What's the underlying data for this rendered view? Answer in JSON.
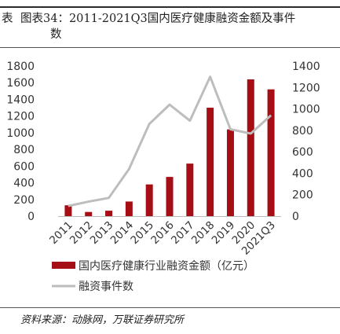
{
  "header": {
    "lead": "表",
    "title_line1": "图表34：2011-2021Q3国内医疗健康融资金额及事件",
    "title_line2": "数"
  },
  "source": "资料来源：动脉网，万联证券研究所",
  "colors": {
    "bar": "#a40e14",
    "line": "#bdbdbd"
  },
  "chart_data": {
    "type": "bar",
    "categories": [
      "2011",
      "2012",
      "2013",
      "2014",
      "2015",
      "2016",
      "2017",
      "2018",
      "2019",
      "2020",
      "2021Q3"
    ],
    "series": [
      {
        "name": "国内医疗健康行业融资金额（亿元）",
        "type": "bar",
        "axis": "left",
        "values": [
          130,
          50,
          65,
          175,
          380,
          470,
          630,
          1300,
          1040,
          1640,
          1520
        ]
      },
      {
        "name": "融资事件数",
        "type": "line",
        "axis": "right",
        "values": [
          95,
          135,
          170,
          440,
          860,
          1040,
          890,
          1300,
          810,
          770,
          940
        ]
      }
    ],
    "ylim_left": [
      0,
      1800
    ],
    "yticks_left": [
      "0",
      "200",
      "400",
      "600",
      "800",
      "1000",
      "1200",
      "1400",
      "1600",
      "1800"
    ],
    "ylim_right": [
      0,
      1400
    ],
    "yticks_right": [
      "0",
      "200",
      "400",
      "600",
      "800",
      "1000",
      "1200",
      "1400"
    ],
    "grid": false,
    "legend_position": "bottom"
  }
}
